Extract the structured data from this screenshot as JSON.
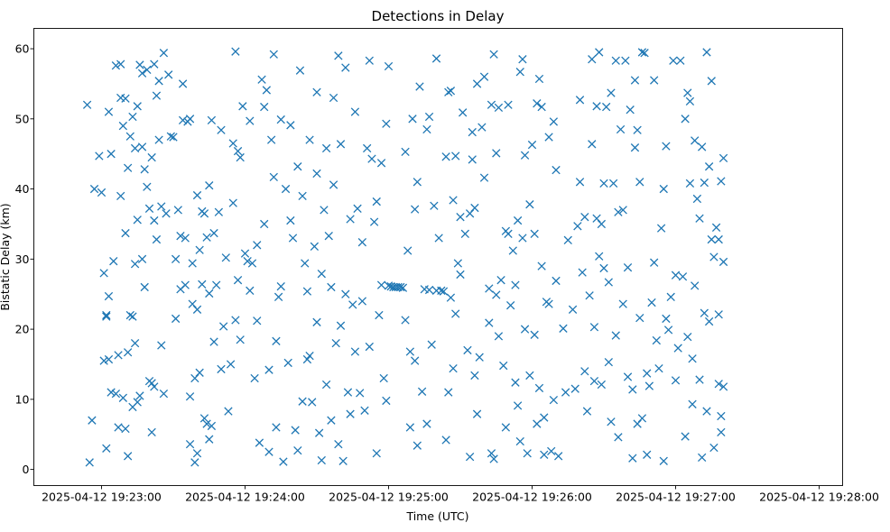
{
  "chart_data": {
    "type": "scatter",
    "title": "Detections in Delay",
    "xlabel": "Time (UTC)",
    "ylabel": "Bistatic Delay (km)",
    "x_reference": "2025-04-12 19:23:00",
    "x_unit": "seconds since x_reference",
    "xlim": [
      -28.3,
      309.8
    ],
    "ylim": [
      -2.3,
      62.9
    ],
    "grid": false,
    "marker": "x",
    "color": "#1f77b4",
    "x_ticks": [
      {
        "value": 0,
        "label": "2025-04-12 19:23:00"
      },
      {
        "value": 60,
        "label": "2025-04-12 19:24:00"
      },
      {
        "value": 120,
        "label": "2025-04-12 19:25:00"
      },
      {
        "value": 180,
        "label": "2025-04-12 19:26:00"
      },
      {
        "value": 240,
        "label": "2025-04-12 19:27:00"
      },
      {
        "value": 300,
        "label": "2025-04-12 19:28:00"
      }
    ],
    "y_ticks": [
      {
        "value": 0,
        "label": "0"
      },
      {
        "value": 10,
        "label": "10"
      },
      {
        "value": 20,
        "label": "20"
      },
      {
        "value": 30,
        "label": "30"
      },
      {
        "value": 40,
        "label": "40"
      },
      {
        "value": 50,
        "label": "50"
      },
      {
        "value": 60,
        "label": "60"
      }
    ],
    "points": [
      [
        -6,
        52
      ],
      [
        -5,
        1
      ],
      [
        -3,
        40
      ],
      [
        -1,
        44.7
      ],
      [
        -4,
        7
      ],
      [
        0,
        39.5
      ],
      [
        1,
        15.5
      ],
      [
        1,
        28
      ],
      [
        2,
        22
      ],
      [
        2,
        21.8
      ],
      [
        2,
        3
      ],
      [
        3,
        24.7
      ],
      [
        3,
        51
      ],
      [
        3,
        15.7
      ],
      [
        4,
        45
      ],
      [
        4,
        11
      ],
      [
        5,
        29.7
      ],
      [
        6,
        10.8
      ],
      [
        6,
        57.6
      ],
      [
        7,
        16.3
      ],
      [
        7,
        6
      ],
      [
        8,
        57.8
      ],
      [
        8,
        53
      ],
      [
        8,
        39
      ],
      [
        9,
        10.2
      ],
      [
        9,
        49
      ],
      [
        10,
        52.9
      ],
      [
        10,
        33.7
      ],
      [
        10,
        5.8
      ],
      [
        11,
        16.7
      ],
      [
        11,
        1.9
      ],
      [
        11,
        43
      ],
      [
        12,
        47.5
      ],
      [
        12,
        22
      ],
      [
        13,
        50.3
      ],
      [
        13,
        8.9
      ],
      [
        13,
        21.8
      ],
      [
        14,
        45.8
      ],
      [
        14,
        29.3
      ],
      [
        14,
        18
      ],
      [
        15,
        35.6
      ],
      [
        15,
        9.6
      ],
      [
        15,
        51.8
      ],
      [
        16,
        57.7
      ],
      [
        16,
        10.5
      ],
      [
        17,
        56.5
      ],
      [
        17,
        46
      ],
      [
        17,
        30
      ],
      [
        18,
        42.8
      ],
      [
        18,
        26
      ],
      [
        19,
        57
      ],
      [
        19,
        40.3
      ],
      [
        20,
        12.6
      ],
      [
        20,
        37.2
      ],
      [
        21,
        12.3
      ],
      [
        21,
        44.5
      ],
      [
        21,
        5.3
      ],
      [
        22,
        57.8
      ],
      [
        22,
        11.8
      ],
      [
        22,
        35.5
      ],
      [
        23,
        53.3
      ],
      [
        23,
        32.8
      ],
      [
        24,
        55.4
      ],
      [
        24,
        47
      ],
      [
        25,
        37.5
      ],
      [
        25,
        17.7
      ],
      [
        26,
        59.4
      ],
      [
        26,
        10.8
      ],
      [
        27,
        36.5
      ],
      [
        28,
        56.3
      ],
      [
        29,
        47.5
      ],
      [
        30,
        47.4
      ],
      [
        31,
        30
      ],
      [
        31,
        21.5
      ],
      [
        32,
        37
      ],
      [
        33,
        33.3
      ],
      [
        33,
        25.7
      ],
      [
        34,
        55
      ],
      [
        34,
        49.8
      ],
      [
        35,
        33
      ],
      [
        35,
        26.3
      ],
      [
        36,
        49.6
      ],
      [
        37,
        50
      ],
      [
        37,
        10.4
      ],
      [
        37,
        3.6
      ],
      [
        38,
        29.4
      ],
      [
        38,
        23.6
      ],
      [
        39,
        13
      ],
      [
        39,
        1
      ],
      [
        40,
        39.1
      ],
      [
        40,
        2.3
      ],
      [
        40,
        22.8
      ],
      [
        41,
        31.3
      ],
      [
        41,
        13.8
      ],
      [
        42,
        36.8
      ],
      [
        42,
        26.4
      ],
      [
        43,
        7.3
      ],
      [
        43,
        36.5
      ],
      [
        44,
        6.5
      ],
      [
        44,
        33.1
      ],
      [
        45,
        40.5
      ],
      [
        45,
        25.1
      ],
      [
        45,
        4.3
      ],
      [
        46,
        6.2
      ],
      [
        46,
        49.8
      ],
      [
        47,
        18.2
      ],
      [
        47,
        33.7
      ],
      [
        48,
        26.3
      ],
      [
        49,
        36.7
      ],
      [
        50,
        48.4
      ],
      [
        50,
        14.3
      ],
      [
        51,
        20.4
      ],
      [
        52,
        30.2
      ],
      [
        53,
        8.3
      ],
      [
        54,
        15
      ],
      [
        55,
        38
      ],
      [
        55,
        46.5
      ],
      [
        56,
        21.3
      ],
      [
        56,
        59.6
      ],
      [
        57,
        45.4
      ],
      [
        57,
        27
      ],
      [
        58,
        44.5
      ],
      [
        58,
        18.5
      ],
      [
        59,
        51.8
      ],
      [
        60,
        30.8
      ],
      [
        61,
        29.7
      ],
      [
        62,
        25.5
      ],
      [
        62,
        49.7
      ],
      [
        63,
        29.4
      ],
      [
        64,
        13
      ],
      [
        65,
        32
      ],
      [
        65,
        21.2
      ],
      [
        66,
        3.8
      ],
      [
        67,
        55.6
      ],
      [
        68,
        35
      ],
      [
        68,
        51.7
      ],
      [
        69,
        54.1
      ],
      [
        70,
        2.5
      ],
      [
        70,
        14.2
      ],
      [
        71,
        47
      ],
      [
        72,
        41.7
      ],
      [
        72,
        59.2
      ],
      [
        73,
        6
      ],
      [
        73,
        18.3
      ],
      [
        74,
        24.6
      ],
      [
        75,
        26.1
      ],
      [
        75,
        49.9
      ],
      [
        76,
        1.1
      ],
      [
        77,
        40
      ],
      [
        78,
        15.2
      ],
      [
        79,
        35.5
      ],
      [
        79,
        49.1
      ],
      [
        80,
        33
      ],
      [
        81,
        5.6
      ],
      [
        82,
        43.2
      ],
      [
        82,
        2.7
      ],
      [
        83,
        56.9
      ],
      [
        84,
        39
      ],
      [
        84,
        9.7
      ],
      [
        85,
        29.4
      ],
      [
        86,
        15.7
      ],
      [
        86,
        25.4
      ],
      [
        87,
        16.2
      ],
      [
        87,
        47
      ],
      [
        88,
        9.6
      ],
      [
        89,
        31.8
      ],
      [
        90,
        53.8
      ],
      [
        90,
        42.2
      ],
      [
        90,
        21
      ],
      [
        91,
        5.2
      ],
      [
        92,
        27.9
      ],
      [
        92,
        1.3
      ],
      [
        93,
        37
      ],
      [
        94,
        45.8
      ],
      [
        94,
        12.1
      ],
      [
        95,
        33.3
      ],
      [
        96,
        7
      ],
      [
        96,
        26
      ],
      [
        97,
        40.6
      ],
      [
        97,
        53
      ],
      [
        98,
        18
      ],
      [
        99,
        59
      ],
      [
        99,
        3.6
      ],
      [
        100,
        46.4
      ],
      [
        100,
        20.5
      ],
      [
        101,
        1.2
      ],
      [
        102,
        57.3
      ],
      [
        102,
        25
      ],
      [
        103,
        11
      ],
      [
        104,
        7.9
      ],
      [
        104,
        35.7
      ],
      [
        105,
        23.5
      ],
      [
        106,
        16.8
      ],
      [
        106,
        51
      ],
      [
        107,
        37.2
      ],
      [
        108,
        10.9
      ],
      [
        109,
        24
      ],
      [
        109,
        32.4
      ],
      [
        110,
        8.4
      ],
      [
        111,
        45.8
      ],
      [
        112,
        58.3
      ],
      [
        112,
        17.5
      ],
      [
        113,
        44.3
      ],
      [
        114,
        35.3
      ],
      [
        115,
        2.3
      ],
      [
        115,
        38.2
      ],
      [
        116,
        22
      ],
      [
        117,
        43.7
      ],
      [
        117,
        26.3
      ],
      [
        118,
        13
      ],
      [
        119,
        9.8
      ],
      [
        119,
        49.3
      ],
      [
        120,
        57.5
      ],
      [
        120,
        26.2
      ],
      [
        121,
        26.1
      ],
      [
        122,
        26
      ],
      [
        123,
        26
      ],
      [
        124,
        26
      ],
      [
        125,
        26
      ],
      [
        126,
        25.9
      ],
      [
        127,
        21.3
      ],
      [
        127,
        45.3
      ],
      [
        128,
        31.2
      ],
      [
        129,
        16.8
      ],
      [
        129,
        6
      ],
      [
        130,
        50
      ],
      [
        131,
        37.1
      ],
      [
        131,
        15.5
      ],
      [
        132,
        41
      ],
      [
        132,
        3.4
      ],
      [
        133,
        54.6
      ],
      [
        134,
        11.1
      ],
      [
        135,
        25.7
      ],
      [
        136,
        48.5
      ],
      [
        136,
        6.5
      ],
      [
        137,
        50.3
      ],
      [
        137,
        25.6
      ],
      [
        138,
        17.8
      ],
      [
        139,
        37.6
      ],
      [
        140,
        58.6
      ],
      [
        140,
        25.5
      ],
      [
        141,
        33
      ],
      [
        142,
        25.5
      ],
      [
        143,
        25.4
      ],
      [
        144,
        44.6
      ],
      [
        144,
        4.2
      ],
      [
        145,
        11
      ],
      [
        145,
        53.8
      ],
      [
        146,
        54
      ],
      [
        146,
        24.5
      ],
      [
        147,
        14.4
      ],
      [
        147,
        38.4
      ],
      [
        148,
        44.7
      ],
      [
        148,
        22.2
      ],
      [
        149,
        29.4
      ],
      [
        150,
        36
      ],
      [
        150,
        27.8
      ],
      [
        151,
        50.9
      ],
      [
        152,
        33.6
      ],
      [
        153,
        17
      ],
      [
        154,
        1.8
      ],
      [
        154,
        36.5
      ],
      [
        155,
        48.1
      ],
      [
        155,
        44.2
      ],
      [
        156,
        13.4
      ],
      [
        156,
        37.3
      ],
      [
        157,
        55
      ],
      [
        157,
        7.9
      ],
      [
        158,
        16
      ],
      [
        159,
        48.8
      ],
      [
        160,
        56
      ],
      [
        160,
        41.6
      ],
      [
        162,
        20.9
      ],
      [
        162,
        25.8
      ],
      [
        163,
        52
      ],
      [
        163,
        2.3
      ],
      [
        164,
        59.2
      ],
      [
        164,
        1.5
      ],
      [
        165,
        24.9
      ],
      [
        165,
        45.1
      ],
      [
        166,
        19
      ],
      [
        166,
        51.6
      ],
      [
        167,
        27
      ],
      [
        168,
        14.8
      ],
      [
        169,
        6
      ],
      [
        169,
        34
      ],
      [
        170,
        33.6
      ],
      [
        170,
        52
      ],
      [
        171,
        23.4
      ],
      [
        172,
        31.2
      ],
      [
        173,
        12.4
      ],
      [
        173,
        26.3
      ],
      [
        174,
        35.5
      ],
      [
        174,
        9.1
      ],
      [
        175,
        4
      ],
      [
        175,
        56.7
      ],
      [
        176,
        58.5
      ],
      [
        176,
        33
      ],
      [
        177,
        20
      ],
      [
        177,
        44.8
      ],
      [
        178,
        2.3
      ],
      [
        179,
        13.4
      ],
      [
        179,
        37.8
      ],
      [
        180,
        46.3
      ],
      [
        181,
        19.2
      ],
      [
        181,
        33.6
      ],
      [
        182,
        52.2
      ],
      [
        182,
        6.5
      ],
      [
        183,
        55.7
      ],
      [
        183,
        11.6
      ],
      [
        184,
        29
      ],
      [
        184,
        51.7
      ],
      [
        185,
        7.4
      ],
      [
        185,
        2.1
      ],
      [
        186,
        23.9
      ],
      [
        187,
        47.4
      ],
      [
        187,
        23.6
      ],
      [
        188,
        2.6
      ],
      [
        189,
        9.9
      ],
      [
        189,
        49.6
      ],
      [
        190,
        42.7
      ],
      [
        190,
        26.9
      ],
      [
        191,
        1.9
      ],
      [
        193,
        20.1
      ],
      [
        194,
        11
      ],
      [
        195,
        32.7
      ],
      [
        197,
        22.8
      ],
      [
        198,
        11.5
      ],
      [
        199,
        34.7
      ],
      [
        200,
        52.7
      ],
      [
        200,
        41
      ],
      [
        201,
        28.1
      ],
      [
        202,
        14
      ],
      [
        202,
        36
      ],
      [
        203,
        8.3
      ],
      [
        204,
        24.8
      ],
      [
        205,
        46.4
      ],
      [
        205,
        58.5
      ],
      [
        206,
        20.3
      ],
      [
        206,
        12.6
      ],
      [
        207,
        51.8
      ],
      [
        207,
        35.8
      ],
      [
        208,
        59.5
      ],
      [
        208,
        30.4
      ],
      [
        209,
        12.1
      ],
      [
        209,
        35
      ],
      [
        210,
        40.8
      ],
      [
        210,
        28.7
      ],
      [
        211,
        51.7
      ],
      [
        212,
        15.3
      ],
      [
        212,
        26.7
      ],
      [
        213,
        53.7
      ],
      [
        213,
        6.8
      ],
      [
        214,
        40.8
      ],
      [
        215,
        58.3
      ],
      [
        215,
        19.1
      ],
      [
        216,
        4.6
      ],
      [
        216,
        36.7
      ],
      [
        217,
        48.5
      ],
      [
        218,
        23.6
      ],
      [
        218,
        37
      ],
      [
        219,
        58.3
      ],
      [
        220,
        13.2
      ],
      [
        220,
        28.8
      ],
      [
        221,
        51.3
      ],
      [
        222,
        11.4
      ],
      [
        222,
        1.6
      ],
      [
        223,
        55.5
      ],
      [
        223,
        45.9
      ],
      [
        224,
        6.5
      ],
      [
        224,
        48.4
      ],
      [
        225,
        41
      ],
      [
        225,
        21.6
      ],
      [
        226,
        7.3
      ],
      [
        226,
        59.5
      ],
      [
        227,
        59.4
      ],
      [
        228,
        2.1
      ],
      [
        228,
        13.7
      ],
      [
        229,
        11.9
      ],
      [
        230,
        23.8
      ],
      [
        231,
        55.5
      ],
      [
        231,
        29.5
      ],
      [
        232,
        18.4
      ],
      [
        233,
        14.4
      ],
      [
        234,
        34.4
      ],
      [
        235,
        1.2
      ],
      [
        235,
        40
      ],
      [
        236,
        21.5
      ],
      [
        236,
        46.1
      ],
      [
        237,
        19.9
      ],
      [
        238,
        24.6
      ],
      [
        239,
        58.3
      ],
      [
        240,
        27.7
      ],
      [
        240,
        12.7
      ],
      [
        241,
        17.3
      ],
      [
        242,
        58.3
      ],
      [
        243,
        27.5
      ],
      [
        244,
        4.7
      ],
      [
        244,
        50
      ],
      [
        245,
        18.9
      ],
      [
        245,
        53.7
      ],
      [
        246,
        52.5
      ],
      [
        246,
        40.8
      ],
      [
        247,
        15.8
      ],
      [
        247,
        9.3
      ],
      [
        248,
        46.9
      ],
      [
        248,
        26.2
      ],
      [
        249,
        38.6
      ],
      [
        250,
        12.8
      ],
      [
        250,
        35.8
      ],
      [
        251,
        46
      ],
      [
        251,
        1.7
      ],
      [
        252,
        22.3
      ],
      [
        252,
        40.9
      ],
      [
        253,
        8.3
      ],
      [
        253,
        59.5
      ],
      [
        254,
        43.2
      ],
      [
        254,
        21.1
      ],
      [
        255,
        55.4
      ],
      [
        255,
        32.8
      ],
      [
        256,
        30.3
      ],
      [
        256,
        3.1
      ],
      [
        257,
        34.5
      ],
      [
        258,
        12.2
      ],
      [
        258,
        22.1
      ],
      [
        259,
        7.6
      ],
      [
        259,
        5.3
      ],
      [
        260,
        44.4
      ],
      [
        260,
        29.6
      ],
      [
        260,
        11.8
      ],
      [
        259,
        41.1
      ],
      [
        258,
        32.8
      ]
    ]
  }
}
